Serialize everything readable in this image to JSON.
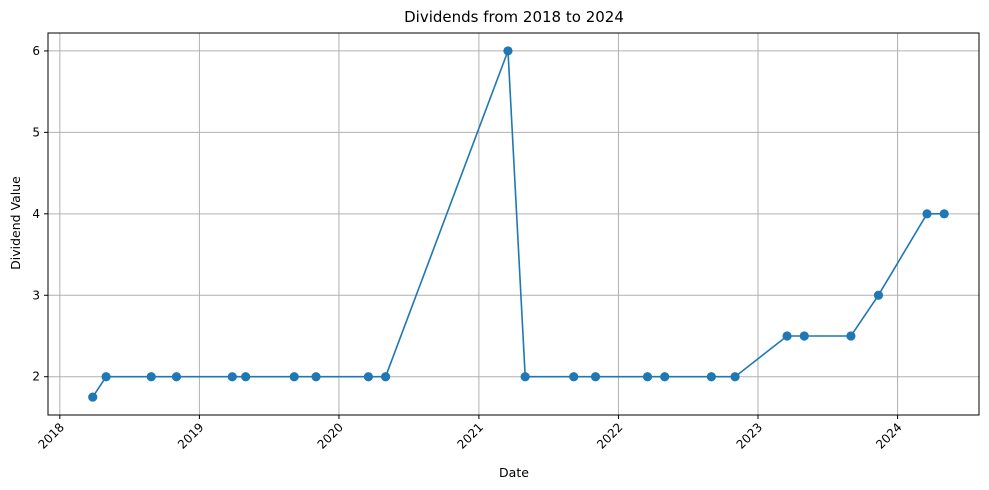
{
  "chart_data": {
    "type": "line",
    "title": "Dividends from 2018 to 2024",
    "xlabel": "Date",
    "ylabel": "Dividend Value",
    "x_axis": "date",
    "xlim": [
      "2017-12-01",
      "2024-08-01"
    ],
    "ylim": [
      1.53,
      6.22
    ],
    "grid": true,
    "marker": "circle",
    "color": "#1f77b4",
    "x_ticks": [
      {
        "value": "2018-01-01",
        "label": "2018"
      },
      {
        "value": "2019-01-01",
        "label": "2019"
      },
      {
        "value": "2020-01-01",
        "label": "2020"
      },
      {
        "value": "2021-01-01",
        "label": "2021"
      },
      {
        "value": "2022-01-01",
        "label": "2022"
      },
      {
        "value": "2023-01-01",
        "label": "2023"
      },
      {
        "value": "2024-01-01",
        "label": "2024"
      }
    ],
    "y_ticks": [
      {
        "value": 2,
        "label": "2"
      },
      {
        "value": 3,
        "label": "3"
      },
      {
        "value": 4,
        "label": "4"
      },
      {
        "value": 5,
        "label": "5"
      },
      {
        "value": 6,
        "label": "6"
      }
    ],
    "series": [
      {
        "points": [
          {
            "x": "2018-03-28",
            "y": 1.75
          },
          {
            "x": "2018-05-02",
            "y": 2.0
          },
          {
            "x": "2018-08-28",
            "y": 2.0
          },
          {
            "x": "2018-11-02",
            "y": 2.0
          },
          {
            "x": "2019-03-28",
            "y": 2.0
          },
          {
            "x": "2019-05-02",
            "y": 2.0
          },
          {
            "x": "2019-09-06",
            "y": 2.0
          },
          {
            "x": "2019-11-02",
            "y": 2.0
          },
          {
            "x": "2020-03-18",
            "y": 2.0
          },
          {
            "x": "2020-05-02",
            "y": 2.0
          },
          {
            "x": "2021-03-18",
            "y": 6.0
          },
          {
            "x": "2021-05-02",
            "y": 2.0
          },
          {
            "x": "2021-09-06",
            "y": 2.0
          },
          {
            "x": "2021-11-02",
            "y": 2.0
          },
          {
            "x": "2022-03-18",
            "y": 2.0
          },
          {
            "x": "2022-05-02",
            "y": 2.0
          },
          {
            "x": "2022-09-01",
            "y": 2.0
          },
          {
            "x": "2022-11-02",
            "y": 2.0
          },
          {
            "x": "2023-03-18",
            "y": 2.5
          },
          {
            "x": "2023-05-02",
            "y": 2.5
          },
          {
            "x": "2023-09-01",
            "y": 2.5
          },
          {
            "x": "2023-11-12",
            "y": 3.0
          },
          {
            "x": "2024-03-18",
            "y": 4.0
          },
          {
            "x": "2024-05-02",
            "y": 4.0
          }
        ]
      }
    ]
  }
}
